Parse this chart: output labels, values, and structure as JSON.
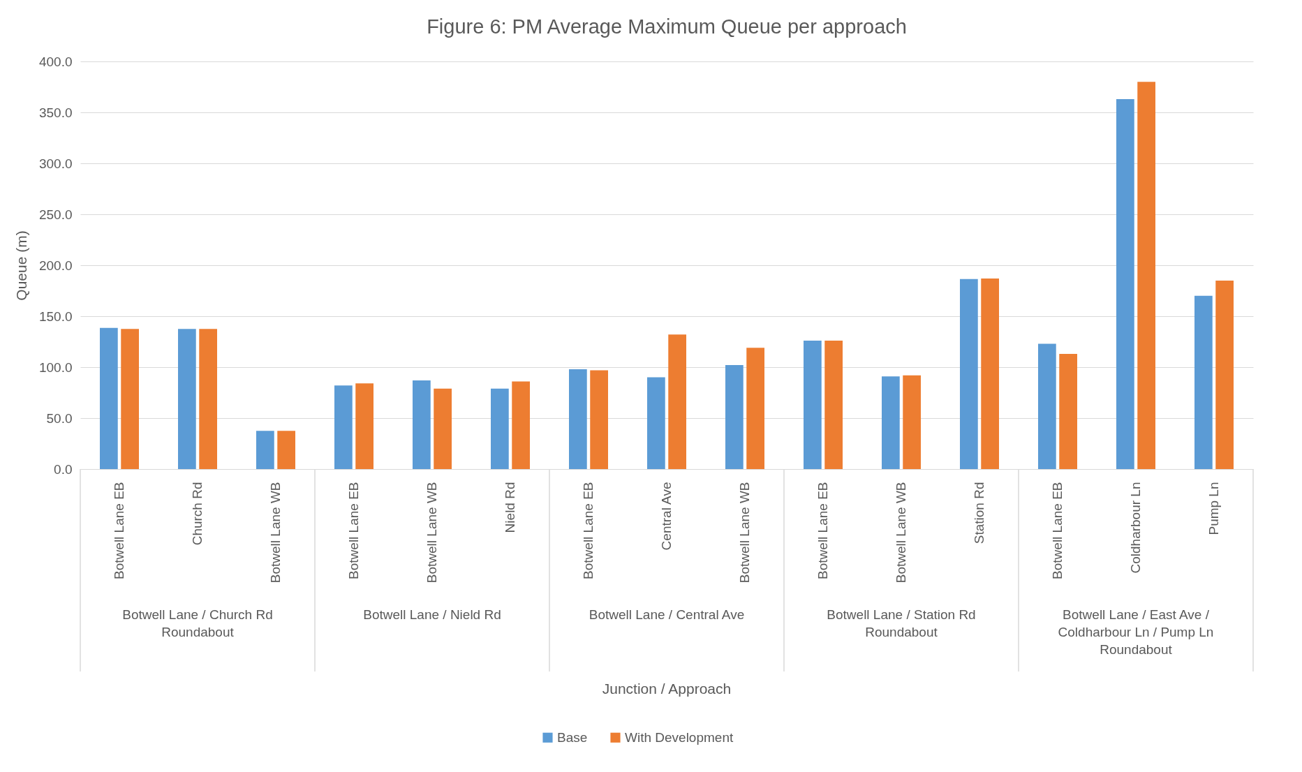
{
  "chart_data": {
    "type": "bar",
    "title": "Figure 6: PM Average Maximum Queue per approach",
    "ylabel": "Queue (m)",
    "categories": [
      "Botwell Lane EB",
      "Church Rd",
      "Botwell Lane WB",
      "Botwell Lane EB",
      "Botwell Lane WB",
      "Nield Rd",
      "Botwell Lane EB",
      "Central Ave",
      "Botwell Lane WB",
      "Botwell Lane EB",
      "Botwell Lane WB",
      "Station Rd",
      "Botwell Lane EB",
      "Coldharbour Ln",
      "Pump Ln"
    ],
    "series": [
      {
        "name": "Base",
        "color": "#5b9bd5",
        "values": [
          138.5,
          137.5,
          37.5,
          82,
          87,
          79,
          98,
          90,
          102,
          126,
          91,
          186.5,
          123,
          363,
          170
        ]
      },
      {
        "name": "With Development",
        "color": "#ed7d31",
        "values": [
          137.5,
          137.5,
          37.5,
          84,
          79,
          86,
          97,
          132,
          119,
          126,
          92,
          187,
          113,
          380,
          185
        ]
      }
    ],
    "annotations": [
      "Botwell Lane / Church Rd\nRoundabout",
      "Botwell Lane / Nield Rd",
      "Botwell Lane / Central Ave",
      "Botwell Lane / Station Rd\nRoundabout",
      "Botwell Lane / East Ave /\nColdharbour Ln / Pump Ln\nRoundabout",
      "Junction  / Approach"
    ],
    "ylim": [
      0,
      400
    ],
    "yticks": [
      {
        "value": 0,
        "label": "0.0"
      },
      {
        "value": 50,
        "label": "50.0"
      },
      {
        "value": 100,
        "label": "100.0"
      },
      {
        "value": 150,
        "label": "150.0"
      },
      {
        "value": 200,
        "label": "200.0"
      },
      {
        "value": 250,
        "label": "250.0"
      },
      {
        "value": 300,
        "label": "300.0"
      },
      {
        "value": 350,
        "label": "350.0"
      },
      {
        "value": 400,
        "label": "400.0"
      }
    ],
    "grid": "y",
    "legend": "bottom"
  }
}
